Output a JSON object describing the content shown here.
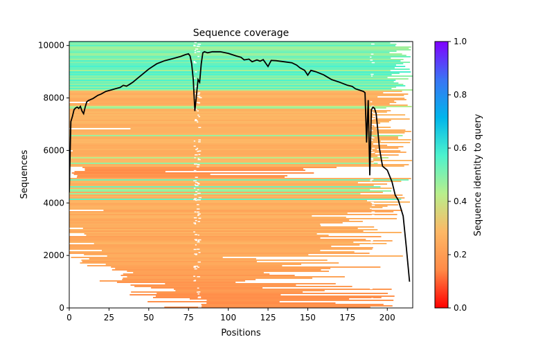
{
  "chart_data": {
    "type": "heatmap",
    "title": "Sequence coverage",
    "xlabel": "Positions",
    "ylabel": "Sequences",
    "xlim": [
      0,
      216
    ],
    "ylim": [
      0,
      10150
    ],
    "xticks": [
      0,
      25,
      50,
      75,
      100,
      125,
      150,
      175,
      200
    ],
    "yticks": [
      0,
      2000,
      4000,
      6000,
      8000,
      10000
    ],
    "grid": false,
    "colorbar": {
      "label": "Sequence identity to query",
      "range": [
        0.0,
        1.0
      ],
      "ticks": [
        "0.0",
        "0.2",
        "0.4",
        "0.6",
        "0.8",
        "1.0"
      ],
      "colormap": "rainbow_r",
      "stops": [
        "#ff0000",
        "#ff8a47",
        "#fdb866",
        "#b9ef8c",
        "#4df3cd",
        "#00b5eb",
        "#3a74f4",
        "#8000ff"
      ]
    },
    "coverage_line": {
      "name": "coverage",
      "color": "#000000",
      "x": [
        0,
        1,
        2,
        3,
        4,
        5,
        6,
        7,
        8,
        9,
        10,
        11,
        12,
        15,
        18,
        20,
        23,
        26,
        29,
        32,
        34,
        36,
        38,
        40,
        43,
        46,
        50,
        55,
        60,
        65,
        70,
        73,
        75,
        76,
        77,
        78,
        79,
        80,
        81,
        82,
        83,
        84,
        85,
        87,
        90,
        95,
        100,
        105,
        108,
        110,
        113,
        115,
        118,
        120,
        122,
        125,
        127,
        130,
        135,
        140,
        143,
        145,
        148,
        150,
        152,
        155,
        160,
        165,
        170,
        175,
        178,
        180,
        185,
        186,
        187,
        188,
        189,
        190,
        191,
        192,
        193,
        194,
        195,
        197,
        200,
        203,
        205,
        207,
        208,
        210,
        212,
        214
      ],
      "y": [
        4400,
        7100,
        7300,
        7550,
        7620,
        7650,
        7600,
        7680,
        7500,
        7400,
        7650,
        7850,
        7900,
        7980,
        8100,
        8150,
        8250,
        8300,
        8350,
        8400,
        8480,
        8450,
        8520,
        8600,
        8750,
        8900,
        9100,
        9300,
        9420,
        9500,
        9580,
        9650,
        9680,
        9600,
        9300,
        8700,
        7500,
        8100,
        8700,
        8600,
        9300,
        9720,
        9760,
        9720,
        9760,
        9760,
        9700,
        9600,
        9550,
        9450,
        9480,
        9380,
        9450,
        9400,
        9460,
        9200,
        9430,
        9420,
        9380,
        9340,
        9250,
        9150,
        9050,
        8870,
        9050,
        9000,
        8880,
        8700,
        8600,
        8480,
        8440,
        8350,
        8250,
        8200,
        6300,
        7920,
        5050,
        7550,
        7650,
        7600,
        7400,
        6800,
        6100,
        5400,
        5250,
        4800,
        4300,
        4100,
        3900,
        3500,
        2300,
        1000
      ]
    },
    "description": "Stacked horizontal alignment segments per sequence, colored by identity; high-identity (cyan/green) at top, low-identity (orange/red) at bottom"
  }
}
